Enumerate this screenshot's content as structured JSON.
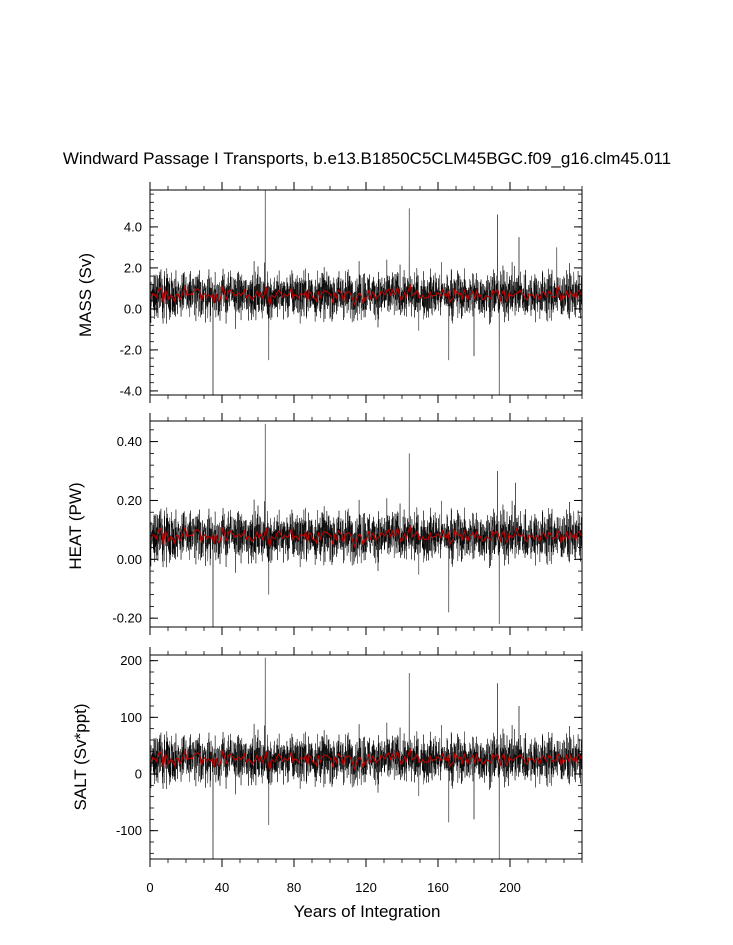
{
  "chart_data": {
    "type": "line",
    "title": "Windward Passage I Transports, b.e13.B1850C5CLM45BGC.f09_g16.clm45.011",
    "xlabel": "Years of Integration",
    "xlim": [
      0,
      240
    ],
    "x_ticks": [
      0,
      40,
      80,
      120,
      160,
      200
    ],
    "x_tick_labels": [
      "0",
      "40",
      "80",
      "120",
      "160",
      "200"
    ],
    "series_colors": {
      "monthly": "#000000",
      "annual_mean": "#c00000"
    },
    "panels": [
      {
        "name": "mass",
        "ylabel": "MASS (Sv)",
        "ylim": [
          -4.2,
          5.8
        ],
        "y_ticks": [
          -4.0,
          -2.0,
          0.0,
          2.0,
          4.0
        ],
        "y_tick_labels": [
          "-4.0",
          "-2.0",
          "0.0",
          "2.0",
          "4.0"
        ],
        "mean": 0.7,
        "noise_amplitude": 0.8,
        "spikes": [
          [
            35,
            -4.2
          ],
          [
            64,
            5.8
          ],
          [
            66,
            -2.5
          ],
          [
            144,
            4.9
          ],
          [
            166,
            -2.5
          ],
          [
            180,
            -2.3
          ],
          [
            193,
            4.6
          ],
          [
            194,
            -4.2
          ],
          [
            205,
            3.5
          ],
          [
            226,
            3.0
          ]
        ]
      },
      {
        "name": "heat",
        "ylabel": "HEAT (PW)",
        "ylim": [
          -0.23,
          0.47
        ],
        "y_ticks": [
          -0.2,
          0.0,
          0.2,
          0.4
        ],
        "y_tick_labels": [
          "-0.20",
          "0.00",
          "0.20",
          "0.40"
        ],
        "mean": 0.08,
        "noise_amplitude": 0.06,
        "spikes": [
          [
            35,
            -0.23
          ],
          [
            64,
            0.46
          ],
          [
            66,
            -0.12
          ],
          [
            144,
            0.36
          ],
          [
            166,
            -0.18
          ],
          [
            193,
            0.3
          ],
          [
            194,
            -0.22
          ],
          [
            203,
            0.26
          ]
        ]
      },
      {
        "name": "salt",
        "ylabel": "SALT (Sv*ppt)",
        "ylim": [
          -150,
          210
        ],
        "y_ticks": [
          -100,
          0,
          100,
          200
        ],
        "y_tick_labels": [
          "-100",
          "0",
          "100",
          "200"
        ],
        "mean": 27,
        "noise_amplitude": 30,
        "spikes": [
          [
            35,
            -150
          ],
          [
            64,
            205
          ],
          [
            66,
            -90
          ],
          [
            144,
            178
          ],
          [
            166,
            -85
          ],
          [
            180,
            -80
          ],
          [
            193,
            160
          ],
          [
            194,
            -150
          ],
          [
            205,
            120
          ]
        ]
      }
    ],
    "grid": false,
    "legend": "none"
  }
}
